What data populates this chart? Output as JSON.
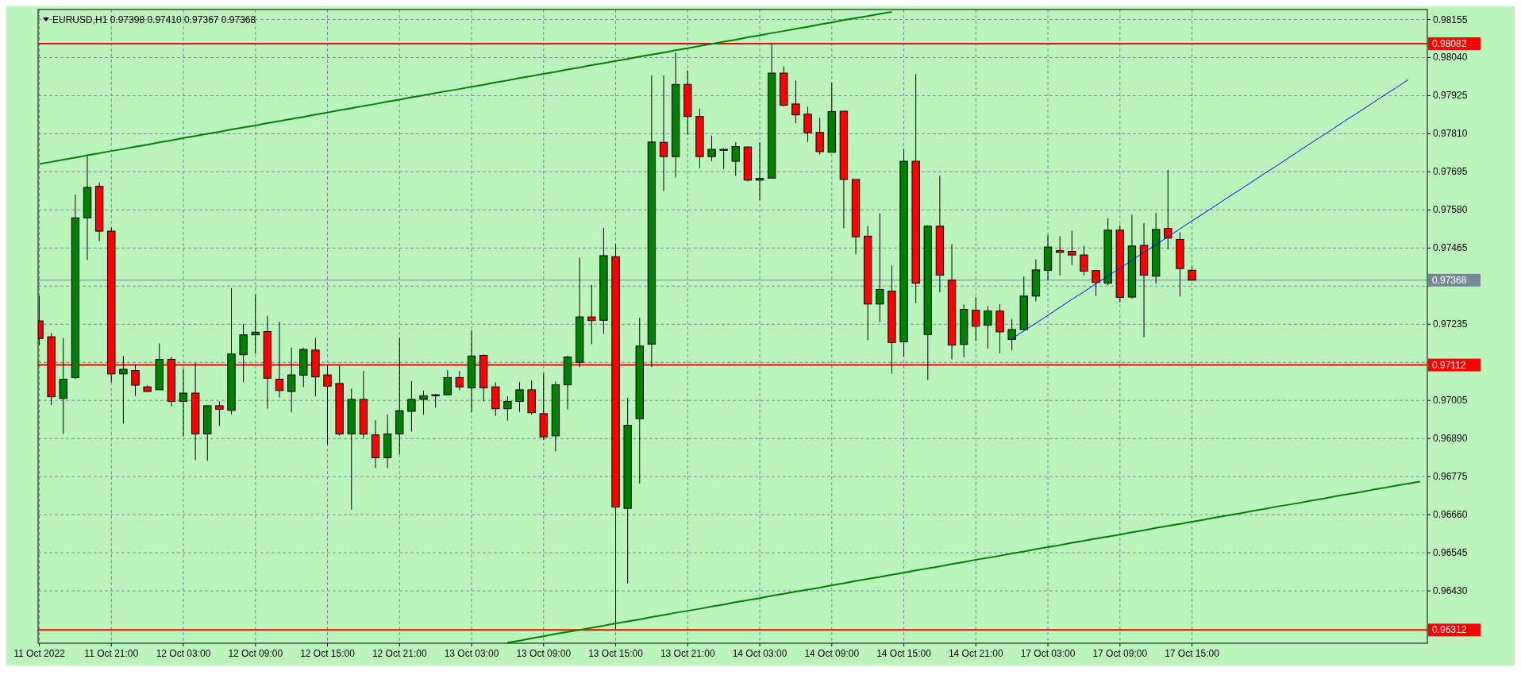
{
  "chart_data": {
    "type": "candlestick",
    "title": "EURUSD,H1 0.97398 0.97410 0.97367 0.97368",
    "categories": [
      "11 Oct 2022",
      null,
      null,
      null,
      null,
      null,
      "11 Oct 21:00",
      null,
      null,
      null,
      null,
      null,
      "12 Oct 03:00",
      null,
      null,
      null,
      null,
      null,
      "12 Oct 09:00",
      null,
      null,
      null,
      null,
      null,
      "12 Oct 15:00",
      null,
      null,
      null,
      null,
      null,
      "12 Oct 21:00",
      null,
      null,
      null,
      null,
      null,
      "13 Oct 03:00",
      null,
      null,
      null,
      null,
      null,
      "13 Oct 09:00",
      null,
      null,
      null,
      null,
      null,
      "13 Oct 15:00",
      null,
      null,
      null,
      null,
      null,
      "13 Oct 21:00",
      null,
      null,
      null,
      null,
      null,
      "14 Oct 03:00",
      null,
      null,
      null,
      null,
      null,
      "14 Oct 09:00",
      null,
      null,
      null,
      null,
      null,
      "14 Oct 15:00",
      null,
      null,
      null,
      null,
      null,
      "14 Oct 21:00",
      null,
      null,
      null,
      null,
      null,
      "17 Oct 03:00",
      null,
      null,
      null,
      null,
      null,
      "17 Oct 09:00",
      null,
      null,
      null,
      null,
      null,
      "17 Oct 15:00",
      null,
      null,
      null,
      null,
      null,
      null,
      null,
      null,
      null,
      null,
      null,
      null,
      null,
      null,
      null,
      null,
      null,
      null,
      null
    ],
    "ylim": [
      0.96272,
      0.98185
    ],
    "yticks": [
      0.98155,
      {
        "value": 0.9804,
        "label": "0.98040"
      },
      0.97925,
      {
        "value": 0.9781,
        "label": "0.97810"
      },
      0.97695,
      {
        "value": 0.9758,
        "label": "0.97580"
      },
      0.97465,
      {
        "value": 0.9735,
        "label": null
      },
      0.97235,
      {
        "value": 0.9712,
        "label": null
      },
      0.97005,
      {
        "value": 0.9689,
        "label": "0.96890"
      },
      0.96775,
      {
        "value": 0.9666,
        "label": "0.96660"
      },
      0.96545,
      {
        "value": 0.9643,
        "label": "0.96430"
      }
    ],
    "grid": true,
    "ref_lines": [
      {
        "axis": "y",
        "value": 0.98082,
        "label": "0.98082",
        "color": "#ff0000"
      },
      {
        "axis": "y",
        "value": 0.97112,
        "label": "0.97112",
        "color": "#ff0000"
      },
      {
        "axis": "y",
        "value": 0.96312,
        "label": "0.96312",
        "color": "#ff0000"
      },
      {
        "axis": "y",
        "value": 0.97368,
        "label": "0.97368",
        "color": "#778899"
      }
    ],
    "series": [
      {
        "type": "line",
        "color": "#008000",
        "values": [
          0.97719,
          0.97725,
          0.97732,
          0.97738,
          0.97745,
          0.97751,
          0.97758,
          0.97764,
          0.97771,
          0.97777,
          0.97784,
          0.9779,
          0.97797,
          0.97803,
          0.9781,
          0.97816,
          0.97823,
          0.97829,
          0.97835,
          0.97842,
          0.97848,
          0.97855,
          0.97861,
          0.97868,
          0.97874,
          0.97881,
          0.97887,
          0.97894,
          0.979,
          0.97907,
          0.97913,
          0.9792,
          0.97926,
          0.97933,
          0.97939,
          0.97945,
          0.97952,
          0.97958,
          0.97965,
          0.97971,
          0.97978,
          0.97984,
          0.97991,
          0.97997,
          0.98004,
          0.9801,
          0.98017,
          0.98023,
          0.9803,
          0.98036,
          0.98043,
          0.98049,
          0.98055,
          0.98062,
          0.98068,
          0.98075,
          0.98081,
          0.98088,
          0.98094,
          0.98101,
          0.98107,
          0.98114,
          0.9812,
          0.98127,
          0.98133,
          0.9814,
          0.98146,
          0.98153,
          0.98159,
          0.98165,
          0.98172,
          0.98178,
          null,
          null,
          null,
          null,
          null,
          null,
          null,
          null,
          null,
          null,
          null,
          null,
          null,
          null,
          null,
          null,
          null,
          null,
          null,
          null,
          null,
          null,
          null,
          null,
          null,
          null,
          null,
          null,
          null,
          null,
          null,
          null,
          null,
          null,
          null,
          null,
          null,
          null,
          null,
          null,
          null,
          null,
          null,
          null
        ]
      },
      {
        "type": "line",
        "color": "#008000",
        "values": [
          null,
          null,
          null,
          null,
          null,
          null,
          null,
          null,
          null,
          null,
          null,
          null,
          null,
          null,
          null,
          null,
          null,
          null,
          null,
          null,
          null,
          null,
          null,
          null,
          null,
          null,
          null,
          null,
          null,
          null,
          null,
          null,
          null,
          null,
          null,
          null,
          null,
          null,
          null,
          0.96274,
          0.9628,
          0.96287,
          0.96293,
          0.963,
          0.96306,
          0.96312,
          0.96319,
          0.96325,
          0.96332,
          0.96338,
          0.96344,
          0.96351,
          0.96357,
          0.96364,
          0.9637,
          0.96376,
          0.96383,
          0.96389,
          0.96396,
          0.96402,
          0.96408,
          0.96415,
          0.96421,
          0.96428,
          0.96434,
          0.9644,
          0.96447,
          0.96453,
          0.9646,
          0.96466,
          0.96472,
          0.96479,
          0.96485,
          0.96492,
          0.96498,
          0.96504,
          0.96511,
          0.96517,
          0.96524,
          0.9653,
          0.96536,
          0.96543,
          0.96549,
          0.96556,
          0.96562,
          0.96568,
          0.96575,
          0.96581,
          0.96588,
          0.96594,
          0.966,
          0.96607,
          0.96613,
          0.9662,
          0.96626,
          0.96632,
          0.96639,
          0.96645,
          0.96652,
          0.96658,
          0.96664,
          0.96671,
          0.96677,
          0.96684,
          0.9669,
          0.96696,
          0.96703,
          0.96709,
          0.96716,
          0.96722,
          0.96728,
          0.96735,
          0.96741,
          0.96748,
          0.96754,
          0.9676
        ]
      },
      {
        "type": "line",
        "color": "#0000ff",
        "values": [
          null,
          null,
          null,
          null,
          null,
          null,
          null,
          null,
          null,
          null,
          null,
          null,
          null,
          null,
          null,
          null,
          null,
          null,
          null,
          null,
          null,
          null,
          null,
          null,
          null,
          null,
          null,
          null,
          null,
          null,
          null,
          null,
          null,
          null,
          null,
          null,
          null,
          null,
          null,
          null,
          null,
          null,
          null,
          null,
          null,
          null,
          null,
          null,
          null,
          null,
          null,
          null,
          null,
          null,
          null,
          null,
          null,
          null,
          null,
          null,
          null,
          null,
          null,
          null,
          null,
          null,
          null,
          null,
          null,
          null,
          null,
          null,
          null,
          null,
          null,
          null,
          null,
          null,
          null,
          null,
          null,
          0.97191,
          0.97215,
          0.97238,
          0.97262,
          0.97286,
          0.9731,
          0.97333,
          0.97357,
          0.97381,
          0.97404,
          0.97428,
          0.97452,
          0.97475,
          0.97499,
          0.97523,
          0.97547,
          0.9757,
          0.97594,
          0.97618,
          0.97641,
          0.97665,
          0.97689,
          0.97712,
          0.97736,
          0.9776,
          0.97784,
          0.97807,
          0.97831,
          0.97855,
          0.97878,
          0.97902,
          0.97926,
          0.97949,
          0.97973,
          null
        ]
      },
      {
        "colors": [
          "#ff0000",
          "#ff0000",
          "#008000",
          "#008000",
          "#008000",
          "#ff0000",
          "#ff0000",
          "#008000",
          "#ff0000",
          "#ff0000",
          "#008000",
          "#ff0000",
          "#008000",
          "#ff0000",
          "#008000",
          "#ff0000",
          "#008000",
          "#008000",
          "#008000",
          "#ff0000",
          "#ff0000",
          "#008000",
          "#008000",
          "#ff0000",
          "#ff0000",
          "#ff0000",
          "#008000",
          "#ff0000",
          "#ff0000",
          "#008000",
          "#008000",
          "#008000",
          "#008000",
          "#008000",
          "#008000",
          "#ff0000",
          "#008000",
          "#ff0000",
          "#ff0000",
          "#008000",
          "#008000",
          "#ff0000",
          "#ff0000",
          "#008000",
          "#008000",
          "#008000",
          "#ff0000",
          "#008000",
          "#ff0000",
          "#008000",
          "#008000",
          "#008000",
          "#ff0000",
          "#008000",
          "#ff0000",
          "#ff0000",
          "#008000",
          "#008000",
          "#008000",
          "#ff0000",
          "#008000",
          "#008000",
          "#ff0000",
          "#ff0000",
          "#ff0000",
          "#ff0000",
          "#008000",
          "#ff0000",
          "#ff0000",
          "#ff0000",
          "#008000",
          "#ff0000",
          "#008000",
          "#ff0000",
          "#008000",
          "#ff0000",
          "#ff0000",
          "#008000",
          "#ff0000",
          "#008000",
          "#ff0000",
          "#008000",
          "#008000",
          "#008000",
          "#008000",
          "#ff0000",
          "#ff0000",
          "#ff0000",
          "#ff0000",
          "#008000",
          "#ff0000",
          "#008000",
          "#ff0000",
          "#008000",
          "#ff0000",
          "#ff0000",
          "#ff0000",
          null,
          null,
          null,
          null,
          null,
          null,
          null,
          null,
          null,
          null,
          null,
          null,
          null,
          null,
          null,
          null,
          null,
          null,
          null
        ],
        "ohlc": [
          [
            0.97245,
            0.9732,
            0.97172,
            0.97192
          ],
          [
            0.97197,
            0.97208,
            0.96991,
            0.97016
          ],
          [
            0.97011,
            0.97194,
            0.96904,
            0.97069
          ],
          [
            0.97074,
            0.97626,
            0.97069,
            0.97556
          ],
          [
            0.97556,
            0.97745,
            0.97429,
            0.97648
          ],
          [
            0.97651,
            0.97663,
            0.97486,
            0.97516
          ],
          [
            0.97516,
            0.97527,
            0.9706,
            0.97085
          ],
          [
            0.97085,
            0.9714,
            0.96935,
            0.97099
          ],
          [
            0.97095,
            0.97113,
            0.97018,
            0.97051
          ],
          [
            0.97046,
            0.9705,
            0.97031,
            0.97032
          ],
          [
            0.97037,
            0.97177,
            0.97037,
            0.97129
          ],
          [
            0.97129,
            0.97136,
            0.96987,
            0.97002
          ],
          [
            0.97002,
            0.97101,
            0.96896,
            0.97027
          ],
          [
            0.97027,
            0.97118,
            0.96825,
            0.96904
          ],
          [
            0.96904,
            0.96989,
            0.96822,
            0.96989
          ],
          [
            0.96989,
            0.97002,
            0.96928,
            0.96978
          ],
          [
            0.96975,
            0.97344,
            0.96963,
            0.97145
          ],
          [
            0.97143,
            0.97236,
            0.9706,
            0.97203
          ],
          [
            0.97203,
            0.97324,
            0.97146,
            0.97211
          ],
          [
            0.97213,
            0.9726,
            0.9698,
            0.97072
          ],
          [
            0.97069,
            0.97242,
            0.97014,
            0.97035
          ],
          [
            0.97032,
            0.97165,
            0.96969,
            0.97082
          ],
          [
            0.97081,
            0.97164,
            0.97045,
            0.97159
          ],
          [
            0.97157,
            0.97194,
            0.97017,
            0.97076
          ],
          [
            0.97082,
            0.97111,
            0.96871,
            0.97048
          ],
          [
            0.97056,
            0.9711,
            0.96899,
            0.96904
          ],
          [
            0.96904,
            0.97041,
            0.96675,
            0.97008
          ],
          [
            0.97008,
            0.97094,
            0.9689,
            0.96903
          ],
          [
            0.96901,
            0.96945,
            0.96801,
            0.96832
          ],
          [
            0.96832,
            0.96962,
            0.96801,
            0.96904
          ],
          [
            0.96904,
            0.97194,
            0.96842,
            0.96974
          ],
          [
            0.96972,
            0.97063,
            0.96911,
            0.97008
          ],
          [
            0.97008,
            0.97035,
            0.96962,
            0.97019
          ],
          [
            0.97019,
            0.97025,
            0.96983,
            0.97022
          ],
          [
            0.97022,
            0.97096,
            0.97022,
            0.97074
          ],
          [
            0.97074,
            0.97094,
            0.97036,
            0.97046
          ],
          [
            0.97043,
            0.97217,
            0.9697,
            0.97139
          ],
          [
            0.97141,
            0.97144,
            0.97002,
            0.97043
          ],
          [
            0.97046,
            0.9706,
            0.96958,
            0.9698
          ],
          [
            0.9698,
            0.97018,
            0.96944,
            0.97002
          ],
          [
            0.97002,
            0.97061,
            0.9697,
            0.97037
          ],
          [
            0.97037,
            0.97065,
            0.96962,
            0.96968
          ],
          [
            0.96965,
            0.97087,
            0.96886,
            0.96895
          ],
          [
            0.96898,
            0.97062,
            0.96851,
            0.97052
          ],
          [
            0.97052,
            0.9714,
            0.96978,
            0.97136
          ],
          [
            0.9712,
            0.97436,
            0.97106,
            0.97257
          ],
          [
            0.97257,
            0.97353,
            0.97175,
            0.97246
          ],
          [
            0.97247,
            0.97526,
            0.97206,
            0.97442
          ],
          [
            0.97439,
            0.97477,
            0.96314,
            0.96683
          ],
          [
            0.96679,
            0.97013,
            0.96452,
            0.9693
          ],
          [
            0.9695,
            0.97255,
            0.96754,
            0.97169
          ],
          [
            0.97175,
            0.97986,
            0.97106,
            0.97785
          ],
          [
            0.97784,
            0.97986,
            0.97637,
            0.97741
          ],
          [
            0.97741,
            0.98055,
            0.97678,
            0.97959
          ],
          [
            0.97959,
            0.98001,
            0.97807,
            0.97862
          ],
          [
            0.97862,
            0.97886,
            0.97706,
            0.97741
          ],
          [
            0.97741,
            0.97804,
            0.97727,
            0.97763
          ],
          [
            0.9776,
            0.97765,
            0.97703,
            0.97763
          ],
          [
            0.97727,
            0.97784,
            0.97683,
            0.97771
          ],
          [
            0.9777,
            0.97771,
            0.97666,
            0.9767
          ],
          [
            0.9767,
            0.97784,
            0.9761,
            0.97675
          ],
          [
            0.97676,
            0.98081,
            0.97675,
            0.97993
          ],
          [
            0.97993,
            0.98013,
            0.97892,
            0.97896
          ],
          [
            0.979,
            0.97971,
            0.97842,
            0.97867
          ],
          [
            0.97869,
            0.97892,
            0.97785,
            0.97813
          ],
          [
            0.97814,
            0.97858,
            0.97747,
            0.97756
          ],
          [
            0.97754,
            0.97964,
            0.97754,
            0.97877
          ],
          [
            0.97878,
            0.97878,
            0.97525,
            0.97672
          ],
          [
            0.97672,
            0.97672,
            0.97446,
            0.97499
          ],
          [
            0.97501,
            0.97531,
            0.97187,
            0.97296
          ],
          [
            0.97296,
            0.9757,
            0.97242,
            0.9734
          ],
          [
            0.97335,
            0.97412,
            0.97086,
            0.9718
          ],
          [
            0.97182,
            0.97764,
            0.97138,
            0.97727
          ],
          [
            0.97727,
            0.9799,
            0.97299,
            0.97359
          ],
          [
            0.97204,
            0.97534,
            0.97067,
            0.97531
          ],
          [
            0.97531,
            0.97683,
            0.97331,
            0.97383
          ],
          [
            0.97368,
            0.97477,
            0.97129,
            0.97172
          ],
          [
            0.97174,
            0.97294,
            0.97135,
            0.9728
          ],
          [
            0.97277,
            0.97317,
            0.97184,
            0.97229
          ],
          [
            0.97232,
            0.9729,
            0.97162,
            0.97275
          ],
          [
            0.97275,
            0.97295,
            0.97148,
            0.97212
          ],
          [
            0.97189,
            0.97251,
            0.97157,
            0.97219
          ],
          [
            0.97219,
            0.97379,
            0.97217,
            0.9732
          ],
          [
            0.9732,
            0.97431,
            0.97304,
            0.97399
          ],
          [
            0.97398,
            0.97505,
            0.97367,
            0.97468
          ],
          [
            0.97457,
            0.97501,
            0.97382,
            0.97452
          ],
          [
            0.97455,
            0.97517,
            0.97414,
            0.97444
          ],
          [
            0.97444,
            0.97471,
            0.97382,
            0.97395
          ],
          [
            0.97397,
            0.97399,
            0.9732,
            0.97361
          ],
          [
            0.97359,
            0.97555,
            0.97353,
            0.97519
          ],
          [
            0.97519,
            0.97534,
            0.97301,
            0.97316
          ],
          [
            0.97317,
            0.97566,
            0.97312,
            0.97471
          ],
          [
            0.97473,
            0.9754,
            0.97196,
            0.97383
          ],
          [
            0.9738,
            0.97571,
            0.97358,
            0.97521
          ],
          [
            0.97524,
            0.97701,
            0.97461,
            0.97495
          ],
          [
            0.97491,
            0.97512,
            0.97319,
            0.97403
          ],
          [
            0.97398,
            0.9741,
            0.97367,
            0.97368
          ],
          null,
          null,
          null,
          null,
          null,
          null,
          null,
          null,
          null,
          null,
          null,
          null,
          null,
          null,
          null,
          null,
          null,
          null,
          null
        ]
      }
    ]
  }
}
